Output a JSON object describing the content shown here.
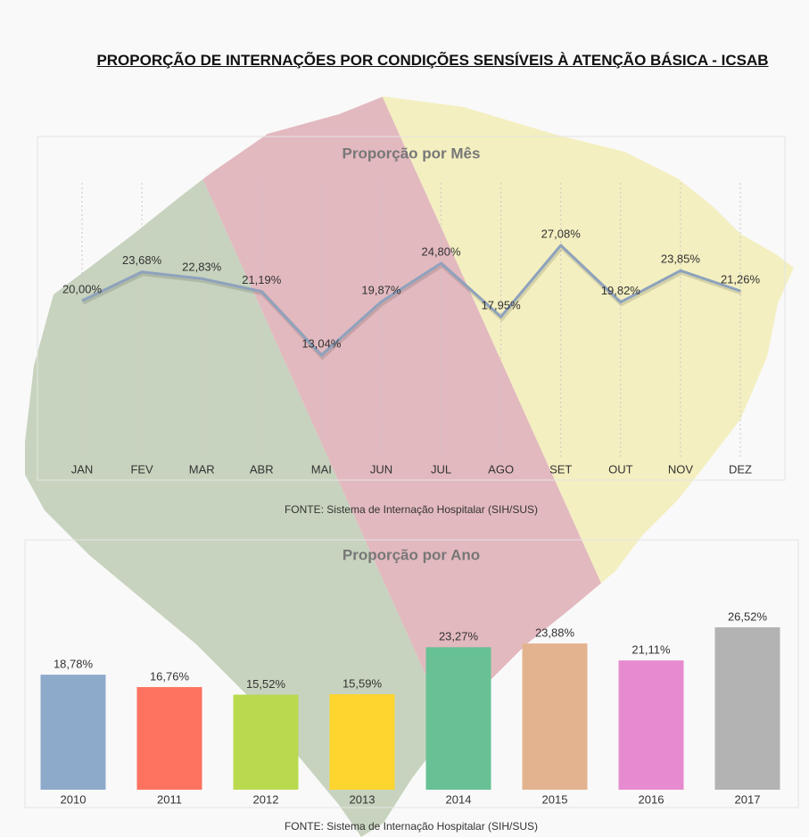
{
  "title": "PROPORÇÃO DE INTERNAÇÕES POR CONDIÇÕES SENSÍVEIS À ATENÇÃO BÁSICA - ICSAB",
  "chart_data": [
    {
      "type": "line",
      "title": "Proporção por Mês",
      "categories": [
        "JAN",
        "FEV",
        "MAR",
        "ABR",
        "MAI",
        "JUN",
        "JUL",
        "AGO",
        "SET",
        "OUT",
        "NOV",
        "DEZ"
      ],
      "values": [
        20.0,
        23.68,
        22.83,
        21.19,
        13.04,
        19.87,
        24.8,
        17.95,
        27.08,
        19.82,
        23.85,
        21.26
      ],
      "value_labels": [
        "20,00%",
        "23,68%",
        "22,83%",
        "21,19%",
        "13,04%",
        "19,87%",
        "24,80%",
        "17,95%",
        "27,08%",
        "19,82%",
        "23,85%",
        "21,26%"
      ],
      "color": "#8ea2bd",
      "source": "FONTE: Sistema de Internação Hospitalar (SIH/SUS)"
    },
    {
      "type": "bar",
      "title": "Proporção por Ano",
      "categories": [
        "2010",
        "2011",
        "2012",
        "2013",
        "2014",
        "2015",
        "2016",
        "2017"
      ],
      "values": [
        18.78,
        16.76,
        15.52,
        15.59,
        23.27,
        23.88,
        21.11,
        26.52
      ],
      "value_labels": [
        "18,78%",
        "16,76%",
        "15,52%",
        "15,59%",
        "23,27%",
        "23,88%",
        "21,11%",
        "26,52%"
      ],
      "colors": [
        "#8eaacb",
        "#fd7360",
        "#b9d94f",
        "#fed52e",
        "#68c195",
        "#e3b38f",
        "#e78bd0",
        "#b3b3b3"
      ],
      "source": "FONTE: Sistema de Internação Hospitalar (SIH/SUS)"
    }
  ]
}
